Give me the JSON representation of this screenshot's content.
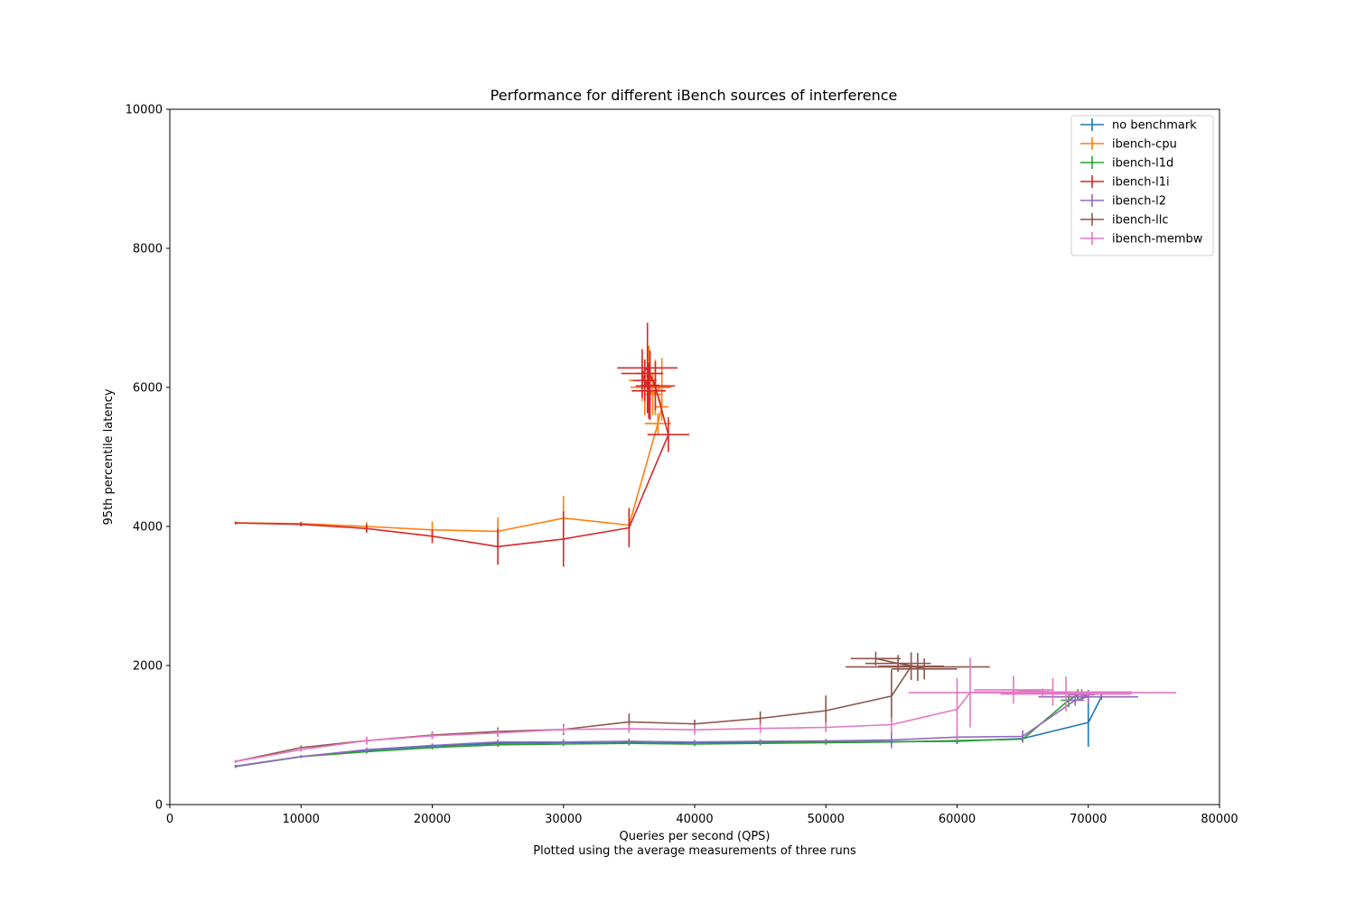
{
  "chart_data": {
    "type": "line",
    "title": "Performance for different iBench sources of interference",
    "xlabel": "Queries per second (QPS)",
    "subtitle": "Plotted using the average measurements of three runs",
    "ylabel": "95th percentile latency",
    "xlim": [
      0,
      80000
    ],
    "ylim": [
      0,
      10000
    ],
    "xticks": [
      0,
      10000,
      20000,
      30000,
      40000,
      50000,
      60000,
      70000,
      80000
    ],
    "yticks": [
      0,
      2000,
      4000,
      6000,
      8000,
      10000
    ],
    "legend_position": "top-right",
    "grid": false,
    "series": [
      {
        "name": "no benchmark",
        "color": "#1f77b4",
        "points": [
          {
            "x": 5000,
            "y": 550,
            "xerr": 0,
            "yerr": 20
          },
          {
            "x": 10000,
            "y": 690,
            "xerr": 0,
            "yerr": 20
          },
          {
            "x": 15000,
            "y": 780,
            "xerr": 0,
            "yerr": 25
          },
          {
            "x": 20000,
            "y": 840,
            "xerr": 0,
            "yerr": 30
          },
          {
            "x": 25000,
            "y": 880,
            "xerr": 0,
            "yerr": 30
          },
          {
            "x": 30000,
            "y": 890,
            "xerr": 0,
            "yerr": 40
          },
          {
            "x": 35000,
            "y": 900,
            "xerr": 0,
            "yerr": 40
          },
          {
            "x": 40000,
            "y": 890,
            "xerr": 0,
            "yerr": 30
          },
          {
            "x": 45000,
            "y": 895,
            "xerr": 0,
            "yerr": 30
          },
          {
            "x": 50000,
            "y": 900,
            "xerr": 0,
            "yerr": 30
          },
          {
            "x": 55000,
            "y": 905,
            "xerr": 0,
            "yerr": 30
          },
          {
            "x": 60000,
            "y": 910,
            "xerr": 0,
            "yerr": 40
          },
          {
            "x": 65000,
            "y": 950,
            "xerr": 0,
            "yerr": 60
          },
          {
            "x": 70000,
            "y": 1180,
            "xerr": 0,
            "yerr": 350
          },
          {
            "x": 71000,
            "y": 1550,
            "xerr": 0,
            "yerr": 40
          }
        ]
      },
      {
        "name": "ibench-cpu",
        "color": "#ff7f0e",
        "points": [
          {
            "x": 5000,
            "y": 4050,
            "xerr": 0,
            "yerr": 20
          },
          {
            "x": 10000,
            "y": 4040,
            "xerr": 0,
            "yerr": 30
          },
          {
            "x": 15000,
            "y": 4000,
            "xerr": 0,
            "yerr": 60
          },
          {
            "x": 20000,
            "y": 3950,
            "xerr": 0,
            "yerr": 120
          },
          {
            "x": 25000,
            "y": 3930,
            "xerr": 0,
            "yerr": 200
          },
          {
            "x": 30000,
            "y": 4120,
            "xerr": 0,
            "yerr": 320
          },
          {
            "x": 35000,
            "y": 4020,
            "xerr": 0,
            "yerr": 250
          },
          {
            "x": 37200,
            "y": 5480,
            "xerr": 1000,
            "yerr": 150
          },
          {
            "x": 37500,
            "y": 5720,
            "xerr": 500,
            "yerr": 200
          },
          {
            "x": 37000,
            "y": 6000,
            "xerr": 1200,
            "yerr": 400
          },
          {
            "x": 36500,
            "y": 6200,
            "xerr": 900,
            "yerr": 400
          },
          {
            "x": 36000,
            "y": 6100,
            "xerr": 1000,
            "yerr": 300
          },
          {
            "x": 36800,
            "y": 5900,
            "xerr": 700,
            "yerr": 300
          },
          {
            "x": 37500,
            "y": 6020,
            "xerr": 600,
            "yerr": 400
          },
          {
            "x": 36200,
            "y": 6000,
            "xerr": 1100,
            "yerr": 400
          }
        ]
      },
      {
        "name": "ibench-l1d",
        "color": "#2ca02c",
        "points": [
          {
            "x": 5000,
            "y": 545,
            "xerr": 0,
            "yerr": 20
          },
          {
            "x": 10000,
            "y": 690,
            "xerr": 0,
            "yerr": 20
          },
          {
            "x": 15000,
            "y": 760,
            "xerr": 0,
            "yerr": 25
          },
          {
            "x": 20000,
            "y": 820,
            "xerr": 0,
            "yerr": 30
          },
          {
            "x": 25000,
            "y": 860,
            "xerr": 0,
            "yerr": 30
          },
          {
            "x": 30000,
            "y": 870,
            "xerr": 0,
            "yerr": 30
          },
          {
            "x": 35000,
            "y": 880,
            "xerr": 0,
            "yerr": 30
          },
          {
            "x": 40000,
            "y": 870,
            "xerr": 0,
            "yerr": 30
          },
          {
            "x": 45000,
            "y": 880,
            "xerr": 0,
            "yerr": 30
          },
          {
            "x": 50000,
            "y": 890,
            "xerr": 0,
            "yerr": 30
          },
          {
            "x": 55000,
            "y": 900,
            "xerr": 0,
            "yerr": 30
          },
          {
            "x": 60000,
            "y": 920,
            "xerr": 0,
            "yerr": 30
          },
          {
            "x": 65000,
            "y": 940,
            "xerr": 0,
            "yerr": 40
          },
          {
            "x": 68500,
            "y": 1500,
            "xerr": 600,
            "yerr": 100
          },
          {
            "x": 69200,
            "y": 1580,
            "xerr": 700,
            "yerr": 80
          }
        ]
      },
      {
        "name": "ibench-l1i",
        "color": "#d62728",
        "points": [
          {
            "x": 5000,
            "y": 4050,
            "xerr": 0,
            "yerr": 20
          },
          {
            "x": 10000,
            "y": 4030,
            "xerr": 0,
            "yerr": 30
          },
          {
            "x": 15000,
            "y": 3970,
            "xerr": 0,
            "yerr": 60
          },
          {
            "x": 20000,
            "y": 3860,
            "xerr": 0,
            "yerr": 100
          },
          {
            "x": 25000,
            "y": 3710,
            "xerr": 0,
            "yerr": 260
          },
          {
            "x": 30000,
            "y": 3820,
            "xerr": 0,
            "yerr": 400
          },
          {
            "x": 35000,
            "y": 3980,
            "xerr": 0,
            "yerr": 280
          },
          {
            "x": 38000,
            "y": 5320,
            "xerr": 1600,
            "yerr": 250
          },
          {
            "x": 37000,
            "y": 6020,
            "xerr": 1500,
            "yerr": 350
          },
          {
            "x": 36400,
            "y": 6280,
            "xerr": 2300,
            "yerr": 650
          },
          {
            "x": 36000,
            "y": 6200,
            "xerr": 1600,
            "yerr": 350
          },
          {
            "x": 36500,
            "y": 5950,
            "xerr": 1300,
            "yerr": 400
          },
          {
            "x": 36200,
            "y": 6100,
            "xerr": 900,
            "yerr": 300
          },
          {
            "x": 36600,
            "y": 6030,
            "xerr": 700,
            "yerr": 500
          }
        ]
      },
      {
        "name": "ibench-l2",
        "color": "#9467bd",
        "points": [
          {
            "x": 5000,
            "y": 550,
            "xerr": 0,
            "yerr": 20
          },
          {
            "x": 10000,
            "y": 690,
            "xerr": 0,
            "yerr": 20
          },
          {
            "x": 15000,
            "y": 790,
            "xerr": 0,
            "yerr": 30
          },
          {
            "x": 20000,
            "y": 850,
            "xerr": 0,
            "yerr": 30
          },
          {
            "x": 25000,
            "y": 900,
            "xerr": 0,
            "yerr": 40
          },
          {
            "x": 30000,
            "y": 900,
            "xerr": 0,
            "yerr": 40
          },
          {
            "x": 35000,
            "y": 910,
            "xerr": 0,
            "yerr": 40
          },
          {
            "x": 40000,
            "y": 900,
            "xerr": 0,
            "yerr": 30
          },
          {
            "x": 45000,
            "y": 910,
            "xerr": 0,
            "yerr": 30
          },
          {
            "x": 50000,
            "y": 915,
            "xerr": 0,
            "yerr": 30
          },
          {
            "x": 55000,
            "y": 930,
            "xerr": 0,
            "yerr": 120
          },
          {
            "x": 60000,
            "y": 970,
            "xerr": 0,
            "yerr": 40
          },
          {
            "x": 65000,
            "y": 980,
            "xerr": 0,
            "yerr": 90
          },
          {
            "x": 69000,
            "y": 1500,
            "xerr": 700,
            "yerr": 80
          },
          {
            "x": 70000,
            "y": 1550,
            "xerr": 3800,
            "yerr": 100
          },
          {
            "x": 69500,
            "y": 1580,
            "xerr": 1000,
            "yerr": 80
          }
        ]
      },
      {
        "name": "ibench-llc",
        "color": "#8c564b",
        "points": [
          {
            "x": 5000,
            "y": 620,
            "xerr": 0,
            "yerr": 20
          },
          {
            "x": 10000,
            "y": 820,
            "xerr": 0,
            "yerr": 30
          },
          {
            "x": 15000,
            "y": 920,
            "xerr": 0,
            "yerr": 40
          },
          {
            "x": 20000,
            "y": 1000,
            "xerr": 0,
            "yerr": 50
          },
          {
            "x": 25000,
            "y": 1050,
            "xerr": 0,
            "yerr": 60
          },
          {
            "x": 30000,
            "y": 1080,
            "xerr": 0,
            "yerr": 80
          },
          {
            "x": 35000,
            "y": 1190,
            "xerr": 0,
            "yerr": 120
          },
          {
            "x": 40000,
            "y": 1160,
            "xerr": 0,
            "yerr": 60
          },
          {
            "x": 45000,
            "y": 1240,
            "xerr": 0,
            "yerr": 100
          },
          {
            "x": 50000,
            "y": 1350,
            "xerr": 0,
            "yerr": 220
          },
          {
            "x": 55000,
            "y": 1560,
            "xerr": 0,
            "yerr": 380
          },
          {
            "x": 56500,
            "y": 1990,
            "xerr": 2500,
            "yerr": 200
          },
          {
            "x": 57000,
            "y": 1980,
            "xerr": 5500,
            "yerr": 200
          },
          {
            "x": 55500,
            "y": 2030,
            "xerr": 2500,
            "yerr": 120
          },
          {
            "x": 53800,
            "y": 2100,
            "xerr": 1900,
            "yerr": 100
          },
          {
            "x": 57500,
            "y": 1950,
            "xerr": 2500,
            "yerr": 150
          }
        ]
      },
      {
        "name": "ibench-membw",
        "color": "#e377c2",
        "points": [
          {
            "x": 5000,
            "y": 620,
            "xerr": 0,
            "yerr": 20
          },
          {
            "x": 10000,
            "y": 790,
            "xerr": 0,
            "yerr": 30
          },
          {
            "x": 15000,
            "y": 920,
            "xerr": 0,
            "yerr": 60
          },
          {
            "x": 20000,
            "y": 990,
            "xerr": 0,
            "yerr": 50
          },
          {
            "x": 25000,
            "y": 1030,
            "xerr": 0,
            "yerr": 60
          },
          {
            "x": 30000,
            "y": 1080,
            "xerr": 0,
            "yerr": 60
          },
          {
            "x": 35000,
            "y": 1090,
            "xerr": 0,
            "yerr": 60
          },
          {
            "x": 40000,
            "y": 1075,
            "xerr": 0,
            "yerr": 70
          },
          {
            "x": 45000,
            "y": 1095,
            "xerr": 0,
            "yerr": 70
          },
          {
            "x": 50000,
            "y": 1110,
            "xerr": 0,
            "yerr": 70
          },
          {
            "x": 55000,
            "y": 1150,
            "xerr": 0,
            "yerr": 100
          },
          {
            "x": 60000,
            "y": 1370,
            "xerr": 0,
            "yerr": 450
          },
          {
            "x": 61000,
            "y": 1610,
            "xerr": 0,
            "yerr": 500
          },
          {
            "x": 66500,
            "y": 1610,
            "xerr": 10200,
            "yerr": 60
          },
          {
            "x": 64300,
            "y": 1650,
            "xerr": 3000,
            "yerr": 200
          },
          {
            "x": 67300,
            "y": 1620,
            "xerr": 6000,
            "yerr": 200
          },
          {
            "x": 68300,
            "y": 1590,
            "xerr": 5000,
            "yerr": 250
          }
        ]
      }
    ]
  }
}
